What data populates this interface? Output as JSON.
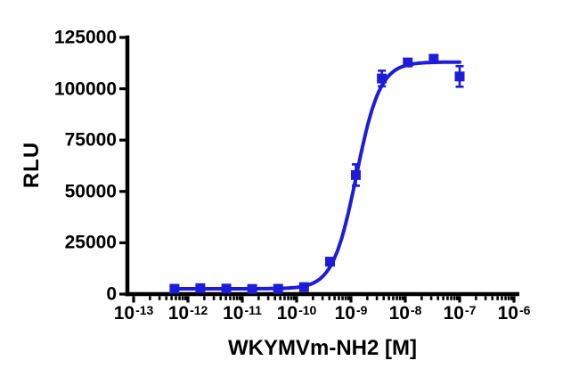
{
  "figure": {
    "background": "#ffffff",
    "axis_color": "#000000"
  },
  "chart_data": {
    "type": "scatter",
    "title": "",
    "xlabel": "WKYMVm-NH2 [M]",
    "ylabel": "RLU",
    "x_scale": "log10",
    "xlim_exp": [
      -13,
      -6
    ],
    "ylim": [
      0,
      125000
    ],
    "x_ticks_exp": [
      -13,
      -12,
      -11,
      -10,
      -9,
      -8,
      -7,
      -6
    ],
    "y_ticks": [
      0,
      25000,
      50000,
      75000,
      100000,
      125000
    ],
    "grid": false,
    "legend": "none",
    "series": [
      {
        "name": "WKYMVm-NH2",
        "color": "#1d1cd9",
        "marker": "square",
        "points": [
          {
            "conc": 5.65e-13,
            "rlu": 2600,
            "err": 400
          },
          {
            "conc": 1.69e-12,
            "rlu": 2900,
            "err": 400
          },
          {
            "conc": 5.08e-12,
            "rlu": 2700,
            "err": 400
          },
          {
            "conc": 1.52e-11,
            "rlu": 2500,
            "err": 400
          },
          {
            "conc": 4.57e-11,
            "rlu": 2600,
            "err": 400
          },
          {
            "conc": 1.37e-10,
            "rlu": 3400,
            "err": 500
          },
          {
            "conc": 4.12e-10,
            "rlu": 15800,
            "err": 900
          },
          {
            "conc": 1.23e-09,
            "rlu": 58000,
            "err": 5200
          },
          {
            "conc": 3.7e-09,
            "rlu": 105000,
            "err": 3800
          },
          {
            "conc": 1.11e-08,
            "rlu": 112800,
            "err": 1500
          },
          {
            "conc": 3.33e-08,
            "rlu": 114600,
            "err": 1500
          },
          {
            "conc": 1e-07,
            "rlu": 106000,
            "err": 5000
          }
        ]
      }
    ],
    "fit": {
      "model": "4PL",
      "bottom": 2600,
      "top": 113000,
      "logEC50": -8.9,
      "hill": 2.0
    }
  }
}
